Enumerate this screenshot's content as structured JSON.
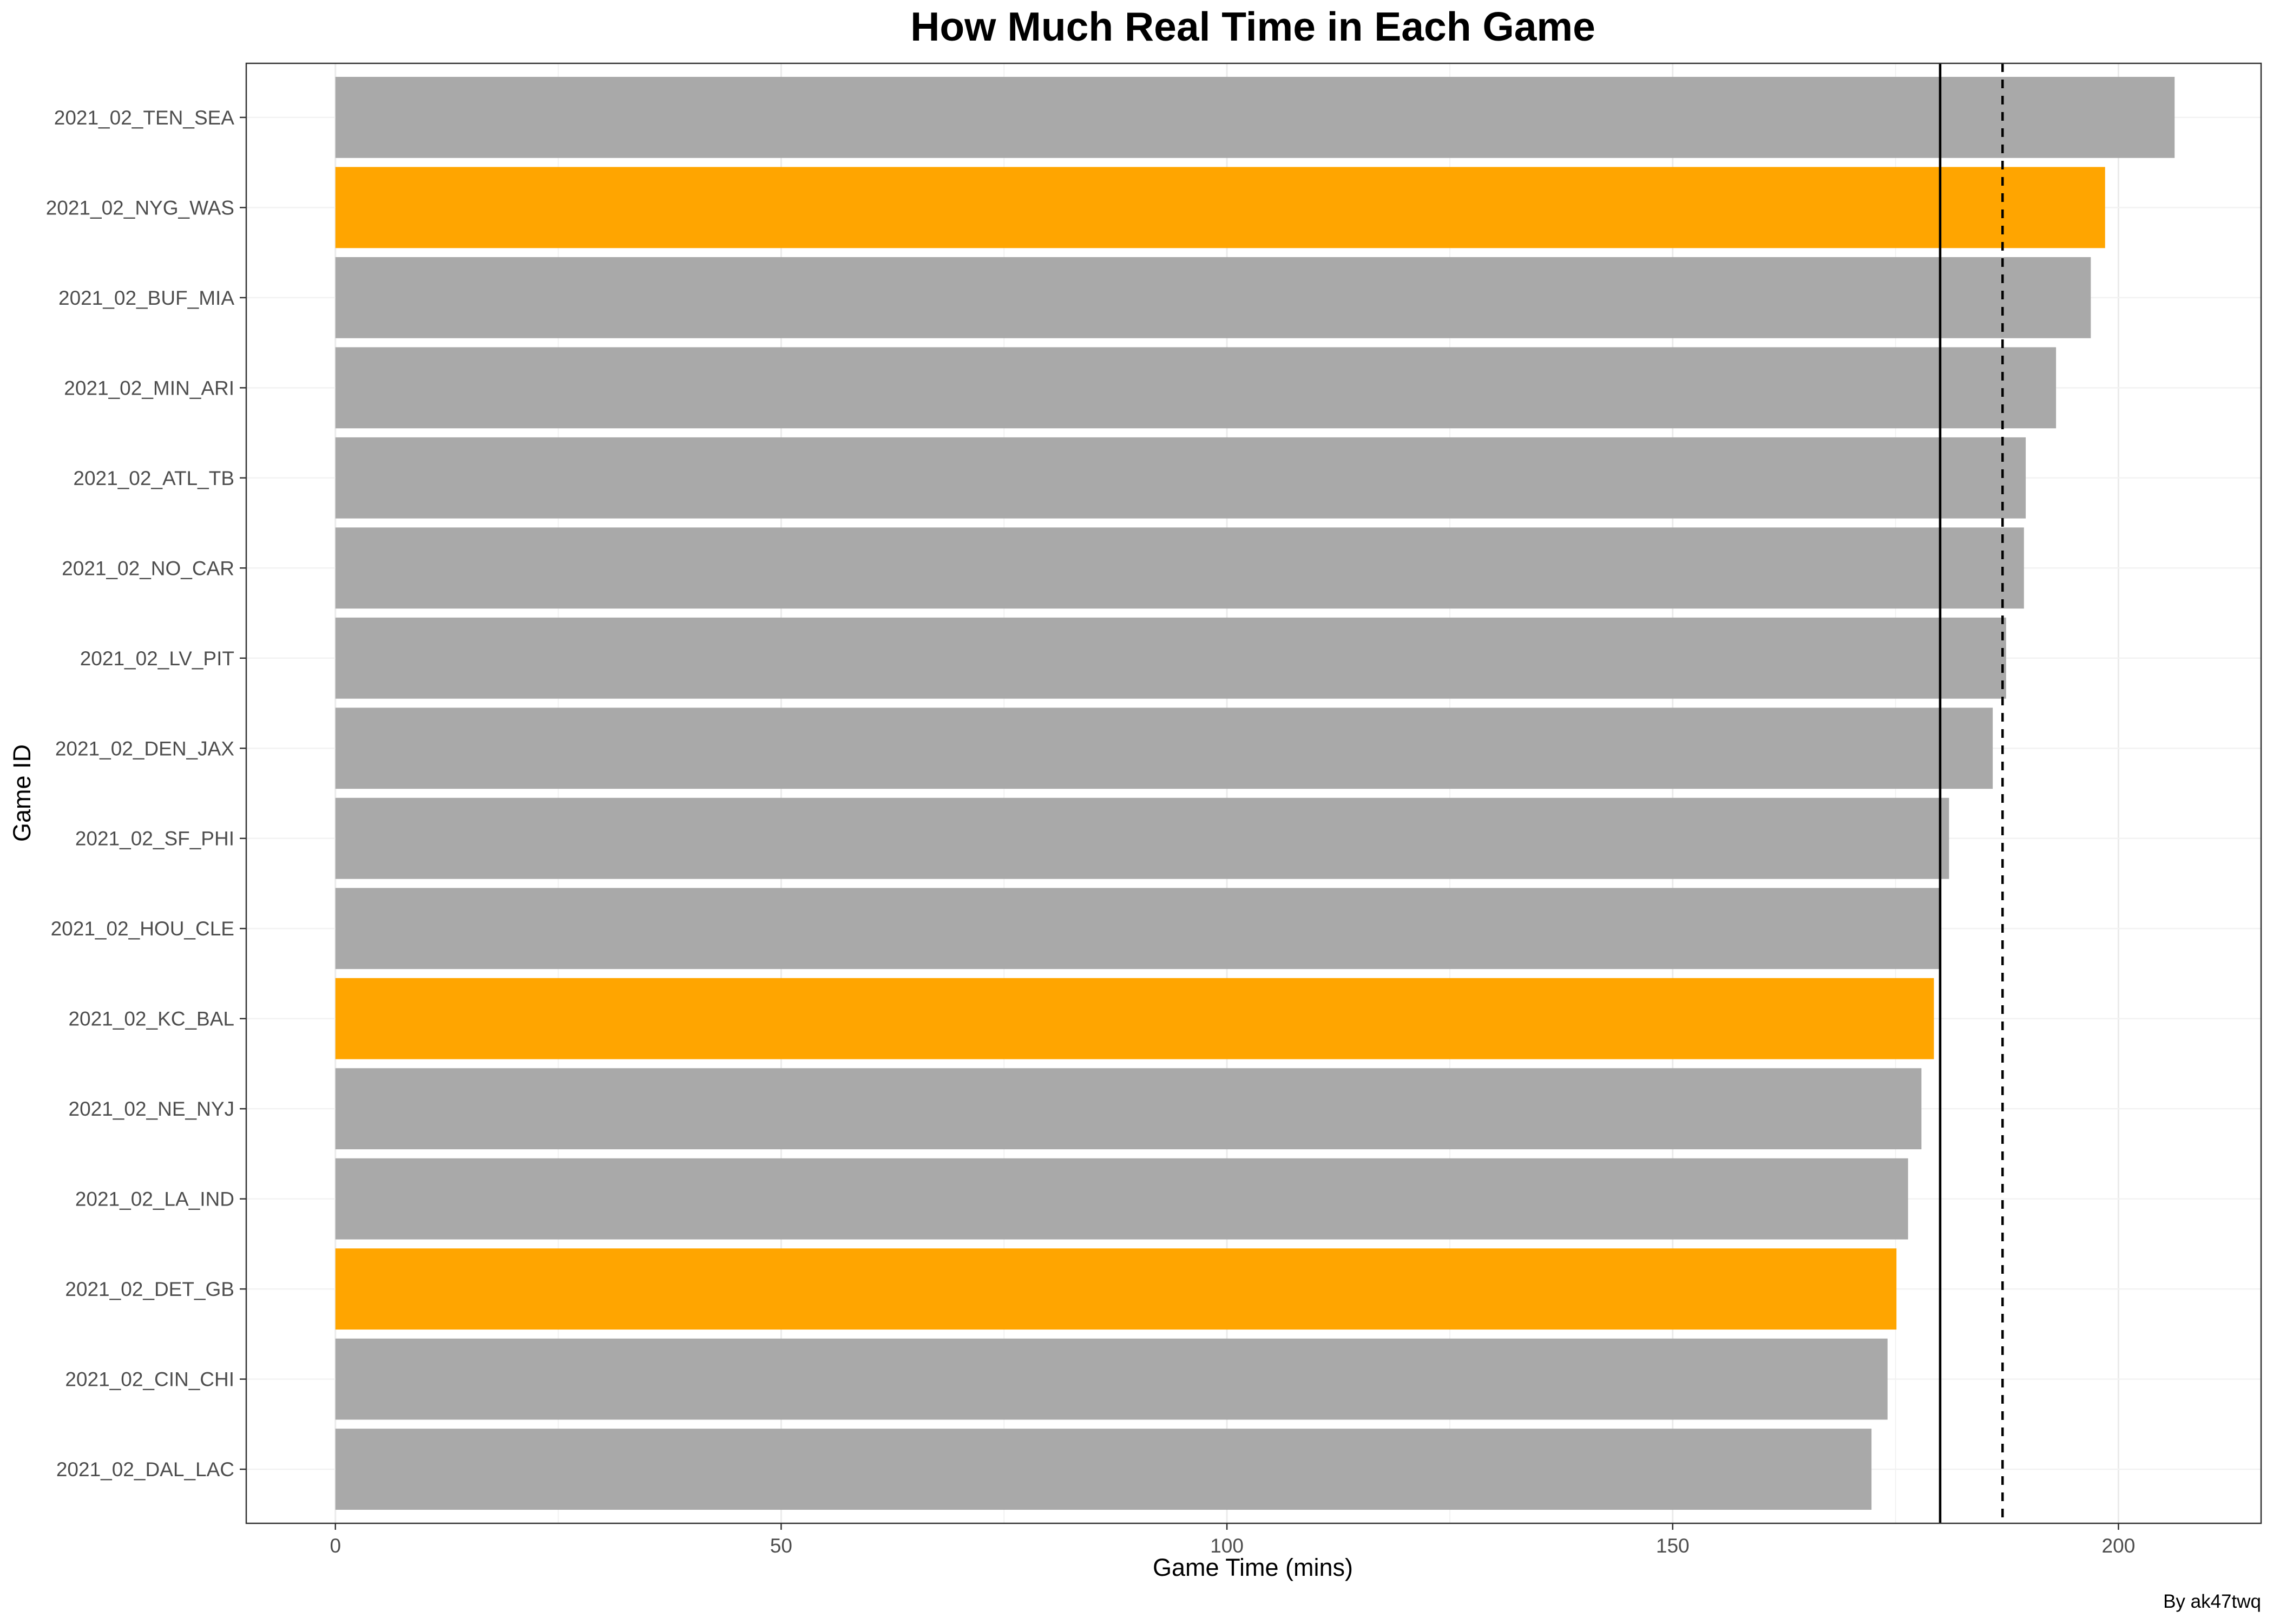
{
  "chart_data": {
    "type": "bar",
    "orientation": "horizontal",
    "title": "How Much Real Time in Each Game",
    "xlabel": "Game Time (mins)",
    "ylabel": "Game ID",
    "caption": "By ak47twq",
    "xlim": [
      -10,
      216
    ],
    "x_ticks": [
      0,
      50,
      100,
      150,
      200
    ],
    "grid": true,
    "legend": "none",
    "categories": [
      "2021_02_TEN_SEA",
      "2021_02_NYG_WAS",
      "2021_02_BUF_MIA",
      "2021_02_MIN_ARI",
      "2021_02_ATL_TB",
      "2021_02_NO_CAR",
      "2021_02_LV_PIT",
      "2021_02_DEN_JAX",
      "2021_02_SF_PHI",
      "2021_02_HOU_CLE",
      "2021_02_KC_BAL",
      "2021_02_NE_NYJ",
      "2021_02_LA_IND",
      "2021_02_DET_GB",
      "2021_02_CIN_CHI",
      "2021_02_DAL_LAC"
    ],
    "values": [
      206.3,
      198.5,
      196.9,
      193.0,
      189.6,
      189.4,
      187.4,
      185.9,
      181.0,
      180.0,
      179.3,
      177.9,
      176.4,
      175.1,
      174.1,
      172.3
    ],
    "highlighted": [
      false,
      true,
      false,
      false,
      false,
      false,
      false,
      false,
      false,
      false,
      true,
      false,
      false,
      true,
      false,
      false
    ],
    "colors": {
      "default": "#a9a9a9",
      "highlight": "#ffa500"
    },
    "reference_lines": [
      {
        "style": "solid",
        "value": 180.0
      },
      {
        "style": "dashed",
        "value": 187.0
      }
    ]
  }
}
